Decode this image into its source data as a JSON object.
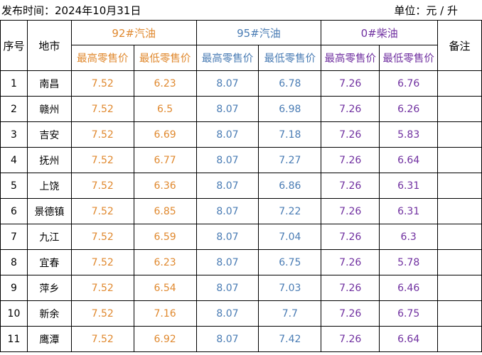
{
  "header": {
    "publish_time": "发布时间：2024年10月31日",
    "unit": "单位：元 / 升"
  },
  "table": {
    "col_seq": "序号",
    "col_city": "地市",
    "col_note": "备注",
    "groups": [
      "92#汽油",
      "95#汽油",
      "0#柴油"
    ],
    "sub_max": "最高零售价",
    "sub_min": "最低零售价",
    "rows": [
      {
        "seq": "1",
        "city": "南昌",
        "p92_max": "7.52",
        "p92_min": "6.23",
        "p95_max": "8.07",
        "p95_min": "6.78",
        "p0_max": "7.26",
        "p0_min": "6.76",
        "note": ""
      },
      {
        "seq": "2",
        "city": "赣州",
        "p92_max": "7.52",
        "p92_min": "6.5",
        "p95_max": "8.07",
        "p95_min": "6.98",
        "p0_max": "7.26",
        "p0_min": "6.26",
        "note": ""
      },
      {
        "seq": "3",
        "city": "吉安",
        "p92_max": "7.52",
        "p92_min": "6.69",
        "p95_max": "8.07",
        "p95_min": "7.18",
        "p0_max": "7.26",
        "p0_min": "5.83",
        "note": ""
      },
      {
        "seq": "4",
        "city": "抚州",
        "p92_max": "7.52",
        "p92_min": "6.77",
        "p95_max": "8.07",
        "p95_min": "7.27",
        "p0_max": "7.26",
        "p0_min": "6.64",
        "note": ""
      },
      {
        "seq": "5",
        "city": "上饶",
        "p92_max": "7.52",
        "p92_min": "6.36",
        "p95_max": "8.07",
        "p95_min": "6.86",
        "p0_max": "7.26",
        "p0_min": "6.31",
        "note": ""
      },
      {
        "seq": "6",
        "city": "景德镇",
        "p92_max": "7.52",
        "p92_min": "6.85",
        "p95_max": "8.07",
        "p95_min": "7.22",
        "p0_max": "7.26",
        "p0_min": "6.31",
        "note": ""
      },
      {
        "seq": "7",
        "city": "九江",
        "p92_max": "7.52",
        "p92_min": "6.59",
        "p95_max": "8.07",
        "p95_min": "7.04",
        "p0_max": "7.26",
        "p0_min": "6.3",
        "note": ""
      },
      {
        "seq": "8",
        "city": "宜春",
        "p92_max": "7.52",
        "p92_min": "6.23",
        "p95_max": "8.07",
        "p95_min": "6.75",
        "p0_max": "7.26",
        "p0_min": "5.78",
        "note": ""
      },
      {
        "seq": "9",
        "city": "萍乡",
        "p92_max": "7.52",
        "p92_min": "6.54",
        "p95_max": "8.07",
        "p95_min": "7.03",
        "p0_max": "7.26",
        "p0_min": "6.46",
        "note": ""
      },
      {
        "seq": "10",
        "city": "新余",
        "p92_max": "7.52",
        "p92_min": "7.16",
        "p95_max": "8.07",
        "p95_min": "7.7",
        "p0_max": "7.26",
        "p0_min": "6.75",
        "note": ""
      },
      {
        "seq": "11",
        "city": "鹰潭",
        "p92_max": "7.52",
        "p92_min": "6.92",
        "p95_max": "8.07",
        "p95_min": "7.42",
        "p0_max": "7.26",
        "p0_min": "6.64",
        "note": ""
      }
    ]
  },
  "colors": {
    "gasoline_92": "#e0892f",
    "gasoline_95": "#4a7cb4",
    "diesel_0": "#7030a0"
  }
}
